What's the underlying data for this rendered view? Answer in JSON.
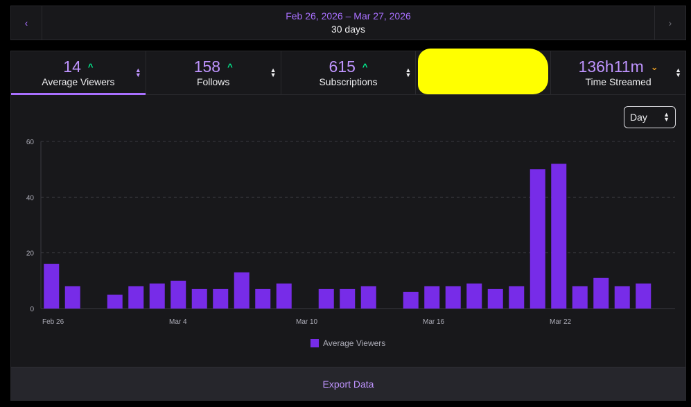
{
  "date_range": {
    "range_label": "Feb 26, 2026 – Mar 27, 2026",
    "days_label": "30 days",
    "prev_icon": "‹",
    "next_icon": "›"
  },
  "metrics": [
    {
      "value": "14",
      "trend": "^",
      "trend_dir": "up",
      "label": "Average Viewers",
      "active": true
    },
    {
      "value": "158",
      "trend": "^",
      "trend_dir": "up",
      "label": "Follows",
      "active": false
    },
    {
      "value": "615",
      "trend": "^",
      "trend_dir": "up",
      "label": "Subscriptions",
      "active": false
    },
    {
      "value": "",
      "trend": "",
      "trend_dir": "",
      "label": "",
      "redacted": true,
      "active": false
    },
    {
      "value": "136h11m",
      "trend": "⌄",
      "trend_dir": "down",
      "label": "Time Streamed",
      "active": false
    }
  ],
  "sort_icon_up": "▲",
  "sort_icon_down": "▼",
  "granularity": {
    "selected": "Day"
  },
  "chart_data": {
    "type": "bar",
    "title": "",
    "xlabel": "",
    "ylabel": "",
    "ylim": [
      0,
      60
    ],
    "yticks": [
      0,
      20,
      40,
      60
    ],
    "categories": [
      "Feb 26",
      "Feb 27",
      "Feb 28",
      "Mar 1",
      "Mar 2",
      "Mar 3",
      "Mar 4",
      "Mar 5",
      "Mar 6",
      "Mar 7",
      "Mar 8",
      "Mar 9",
      "Mar 10",
      "Mar 11",
      "Mar 12",
      "Mar 13",
      "Mar 14",
      "Mar 15",
      "Mar 16",
      "Mar 17",
      "Mar 18",
      "Mar 19",
      "Mar 20",
      "Mar 21",
      "Mar 22",
      "Mar 23",
      "Mar 24",
      "Mar 25",
      "Mar 26",
      "Mar 27"
    ],
    "xtick_labels": [
      {
        "index": 0,
        "label": "Feb 26"
      },
      {
        "index": 6,
        "label": "Mar 4"
      },
      {
        "index": 12,
        "label": "Mar 10"
      },
      {
        "index": 18,
        "label": "Mar 16"
      },
      {
        "index": 24,
        "label": "Mar 22"
      }
    ],
    "series": [
      {
        "name": "Average Viewers",
        "color": "#772ce8",
        "values": [
          16,
          8,
          null,
          5,
          8,
          9,
          10,
          7,
          7,
          13,
          7,
          9,
          null,
          7,
          7,
          8,
          null,
          6,
          8,
          8,
          9,
          7,
          8,
          50,
          52,
          8,
          11,
          8,
          9,
          null
        ]
      }
    ],
    "grid": true,
    "legend": "bottom-center"
  },
  "legend": {
    "label": "Average Viewers"
  },
  "export": {
    "label": "Export Data"
  }
}
